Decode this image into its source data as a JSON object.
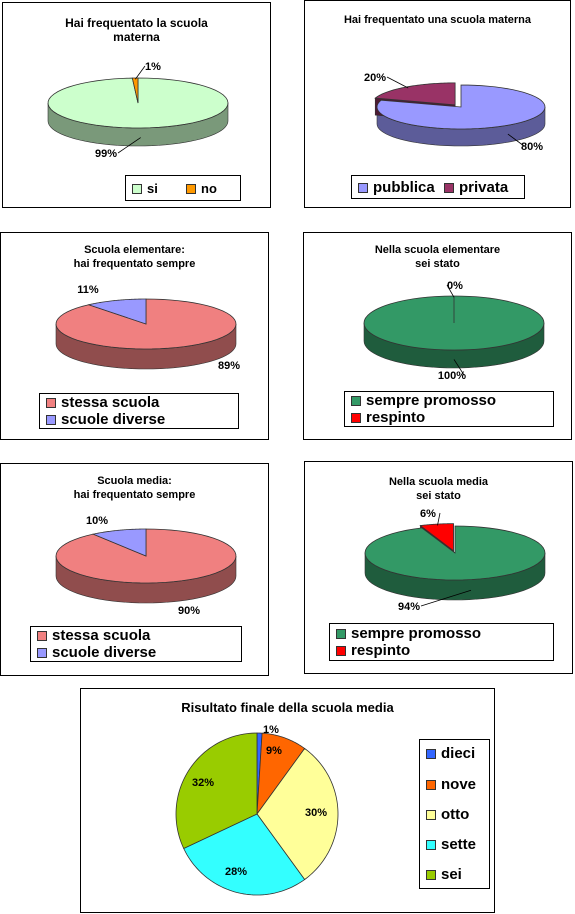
{
  "charts": [
    {
      "id": "materna",
      "title": "Hai frequentato la scuola\nmaterna",
      "legend": [
        {
          "label": "si",
          "color": "#ccffcc"
        },
        {
          "label": "no",
          "color": "#ff9900"
        }
      ],
      "data_labels": [
        "99%",
        "1%"
      ]
    },
    {
      "id": "tipo-materna",
      "title": "Hai frequentato una scuola materna",
      "legend": [
        {
          "label": "pubblica",
          "color": "#9999ff"
        },
        {
          "label": "privata",
          "color": "#993366"
        }
      ],
      "data_labels": [
        "80%",
        "20%"
      ]
    },
    {
      "id": "elementare-sempre",
      "title": "Scuola elementare:\nhai frequentato sempre",
      "legend": [
        {
          "label": "stessa scuola",
          "color": "#f08080"
        },
        {
          "label": "scuole diverse",
          "color": "#9999ff"
        }
      ],
      "data_labels": [
        "89%",
        "11%"
      ]
    },
    {
      "id": "elementare-esito",
      "title": "Nella scuola elementare\nsei stato",
      "legend": [
        {
          "label": "sempre promosso",
          "color": "#339966"
        },
        {
          "label": "respinto",
          "color": "#ff0000"
        }
      ],
      "data_labels": [
        "100%",
        "0%"
      ]
    },
    {
      "id": "media-sempre",
      "title": "Scuola media:\nhai frequentato sempre",
      "legend": [
        {
          "label": "stessa scuola",
          "color": "#f08080"
        },
        {
          "label": "scuole diverse",
          "color": "#9999ff"
        }
      ],
      "data_labels": [
        "90%",
        "10%"
      ]
    },
    {
      "id": "media-esito",
      "title": "Nella scuola media\nsei stato",
      "legend": [
        {
          "label": "sempre promosso",
          "color": "#339966"
        },
        {
          "label": "respinto",
          "color": "#ff0000"
        }
      ],
      "data_labels": [
        "94%",
        "6%"
      ]
    },
    {
      "id": "risultato-finale",
      "title": "Risultato finale della scuola media",
      "legend": [
        {
          "label": "dieci",
          "color": "#3366ff"
        },
        {
          "label": "nove",
          "color": "#ff6600"
        },
        {
          "label": "otto",
          "color": "#ffff99"
        },
        {
          "label": "sette",
          "color": "#33ffff"
        },
        {
          "label": "sei",
          "color": "#99cc00"
        }
      ],
      "data_labels": [
        "1%",
        "9%",
        "30%",
        "28%",
        "32%"
      ]
    }
  ],
  "chart_data": [
    {
      "type": "pie",
      "title": "Hai frequentato la scuola materna",
      "categories": [
        "si",
        "no"
      ],
      "values": [
        99,
        1
      ],
      "colors": [
        "#ccffcc",
        "#ff9900"
      ],
      "style": "3d"
    },
    {
      "type": "pie",
      "title": "Hai frequentato una scuola materna",
      "categories": [
        "pubblica",
        "privata"
      ],
      "values": [
        80,
        20
      ],
      "colors": [
        "#9999ff",
        "#993366"
      ],
      "style": "3d",
      "exploded": "privata"
    },
    {
      "type": "pie",
      "title": "Scuola elementare: hai frequentato sempre",
      "categories": [
        "stessa scuola",
        "scuole diverse"
      ],
      "values": [
        89,
        11
      ],
      "colors": [
        "#f08080",
        "#9999ff"
      ],
      "style": "3d"
    },
    {
      "type": "pie",
      "title": "Nella scuola elementare sei stato",
      "categories": [
        "sempre promosso",
        "respinto"
      ],
      "values": [
        100,
        0
      ],
      "colors": [
        "#339966",
        "#ff0000"
      ],
      "style": "3d"
    },
    {
      "type": "pie",
      "title": "Scuola media: hai frequentato sempre",
      "categories": [
        "stessa scuola",
        "scuole diverse"
      ],
      "values": [
        90,
        10
      ],
      "colors": [
        "#f08080",
        "#9999ff"
      ],
      "style": "3d"
    },
    {
      "type": "pie",
      "title": "Nella scuola media sei stato",
      "categories": [
        "sempre promosso",
        "respinto"
      ],
      "values": [
        94,
        6
      ],
      "colors": [
        "#339966",
        "#ff0000"
      ],
      "style": "3d",
      "exploded": "respinto"
    },
    {
      "type": "pie",
      "title": "Risultato finale della scuola media",
      "categories": [
        "dieci",
        "nove",
        "otto",
        "sette",
        "sei"
      ],
      "values": [
        1,
        9,
        30,
        28,
        32
      ],
      "colors": [
        "#3366ff",
        "#ff6600",
        "#ffff99",
        "#33ffff",
        "#99cc00"
      ],
      "style": "2d",
      "legend_position": "right"
    }
  ]
}
